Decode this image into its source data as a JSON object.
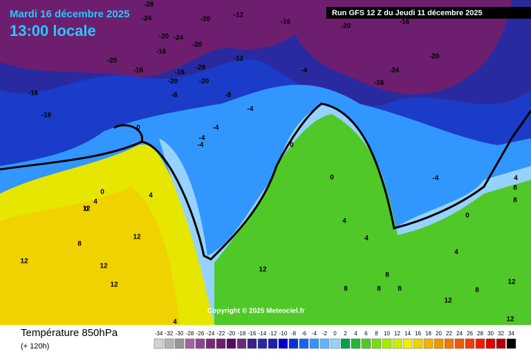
{
  "header": {
    "date": "Mardi 16 décembre 2025",
    "time": "13:00 locale",
    "run": "Run GFS 12 Z du Jeudi 11 décembre 2025"
  },
  "copyright": "Copyright © 2025 Meteociel.fr",
  "footer": {
    "title": "Température 850hPa",
    "lead": "(+ 120h)"
  },
  "scale": {
    "values": [
      -34,
      -32,
      -30,
      -28,
      -26,
      -24,
      -22,
      -20,
      -18,
      -16,
      -14,
      -12,
      -10,
      -8,
      -6,
      -4,
      -2,
      0,
      2,
      4,
      6,
      8,
      10,
      12,
      14,
      16,
      18,
      20,
      22,
      24,
      26,
      28,
      30,
      32,
      34
    ],
    "colors": [
      "#d2d2d2",
      "#b4b4b4",
      "#969696",
      "#a064a0",
      "#8c468c",
      "#782878",
      "#6e1e6e",
      "#5a0a5a",
      "#6a2a7a",
      "#3c1e8c",
      "#2828a0",
      "#1e1eb4",
      "#0000c8",
      "#0a32dc",
      "#1464f0",
      "#3296ff",
      "#64b4ff",
      "#96d2ff",
      "#00a050",
      "#28b43c",
      "#50c828",
      "#78dc14",
      "#a0f000",
      "#c8f000",
      "#f0f000",
      "#f0d200",
      "#f0b400",
      "#f09600",
      "#f07800",
      "#f05a00",
      "#f03c00",
      "#f01e00",
      "#dc0000",
      "#b40000",
      "#000000"
    ]
  },
  "contour_labels": [
    -28,
    -24,
    -20,
    -16,
    -12,
    -24,
    -20,
    -16,
    -16,
    -20,
    -16,
    -20,
    -20,
    -16,
    -20,
    -16,
    -16,
    -20,
    -24,
    -28,
    -20,
    -12,
    -8,
    -16,
    -4,
    -8,
    -4,
    -4,
    0,
    0,
    4,
    -4,
    -4,
    0,
    0,
    0,
    4,
    8,
    12,
    12,
    12,
    12,
    12,
    12,
    8,
    4,
    4,
    8,
    8,
    8,
    12,
    12,
    8,
    12,
    4,
    -4,
    0,
    4,
    4,
    8,
    8
  ]
}
